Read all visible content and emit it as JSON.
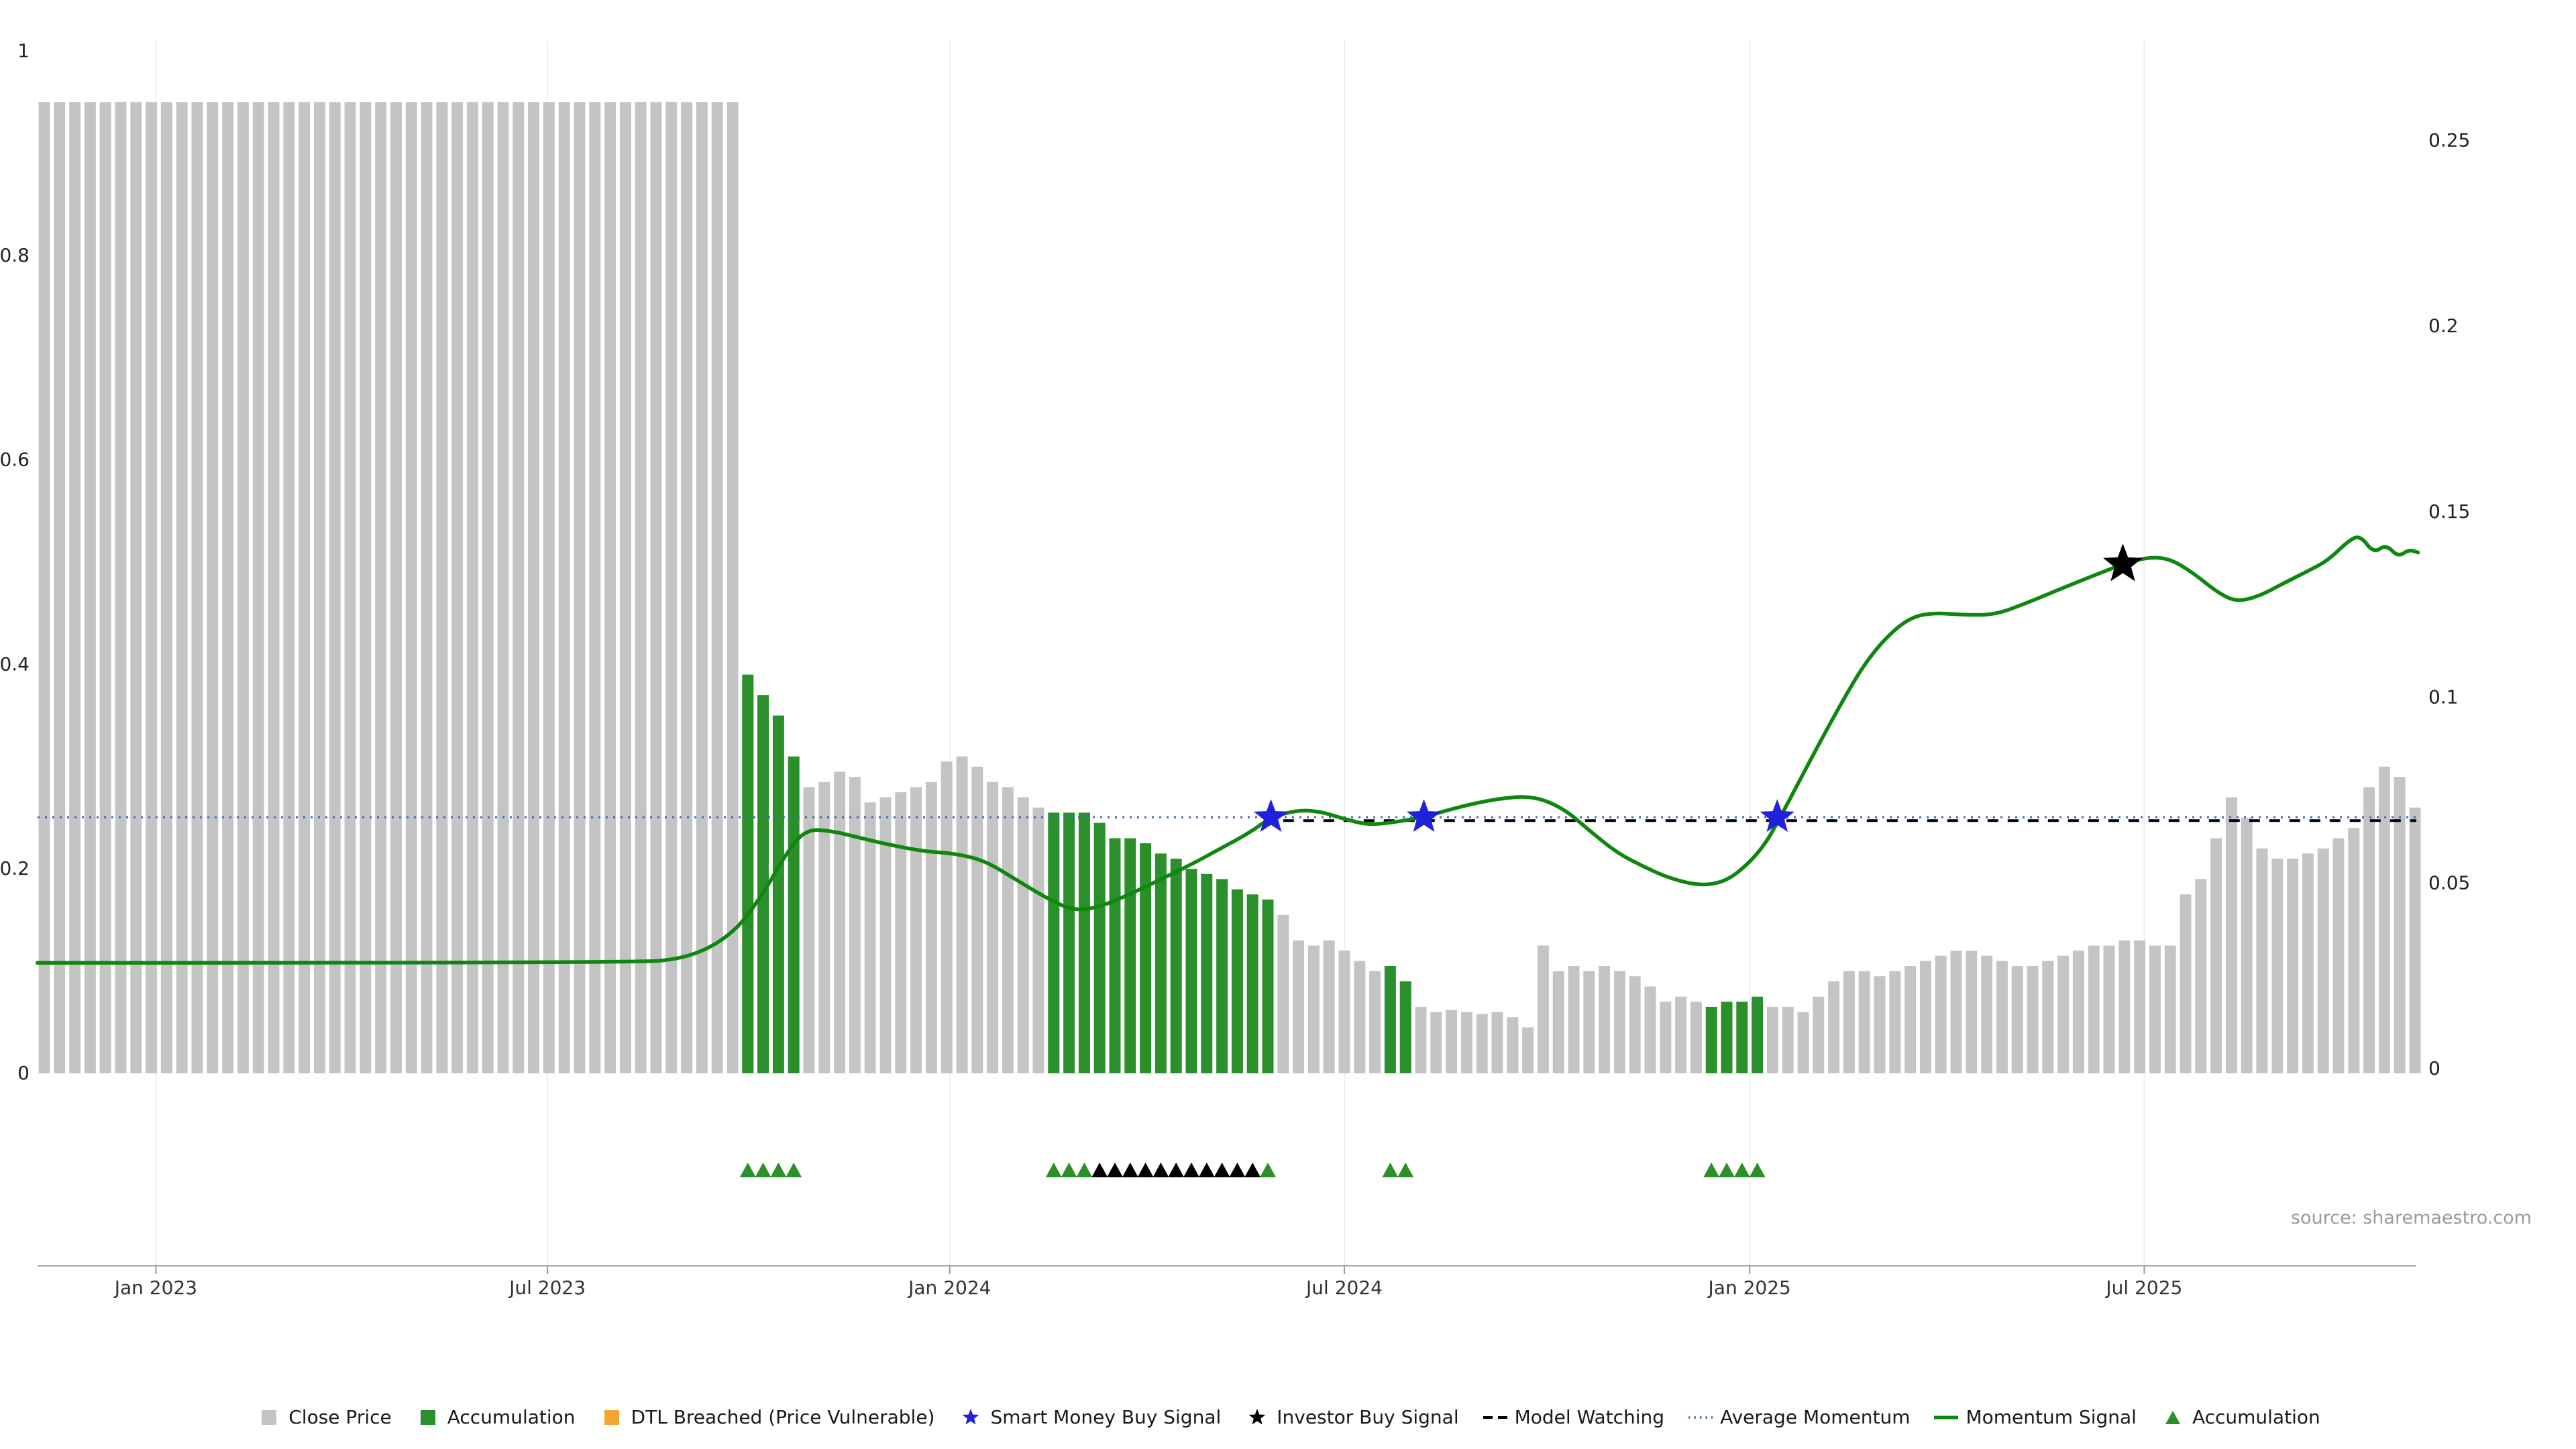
{
  "chart_data": {
    "type": "bar+line",
    "title": "",
    "source": "source: sharemaestro.com",
    "left_axis": {
      "range": [
        0,
        1.05
      ],
      "ticks": [
        {
          "v": 0,
          "label": "0"
        },
        {
          "v": 0.2,
          "label": "0.2"
        },
        {
          "v": 0.4,
          "label": "0.4"
        },
        {
          "v": 0.6,
          "label": "0.6"
        },
        {
          "v": 0.8,
          "label": "0.8"
        },
        {
          "v": 1,
          "label": "1"
        }
      ]
    },
    "right_axis": {
      "range": [
        0,
        0.27
      ],
      "ticks": [
        {
          "v": 0,
          "label": "0"
        },
        {
          "v": 0.05,
          "label": "0.05"
        },
        {
          "v": 0.1,
          "label": "0.1"
        },
        {
          "v": 0.15,
          "label": "0.15"
        },
        {
          "v": 0.2,
          "label": "0.2"
        },
        {
          "v": 0.25,
          "label": "0.25"
        }
      ]
    },
    "x_ticks": [
      {
        "label": "Jan 2023",
        "idx": 7.3
      },
      {
        "label": "Jul 2023",
        "idx": 32.9
      },
      {
        "label": "Jan 2024",
        "idx": 59.2
      },
      {
        "label": "Jul 2024",
        "idx": 85.0
      },
      {
        "label": "Jan 2025",
        "idx": 111.5
      },
      {
        "label": "Jul 2025",
        "idx": 137.3
      }
    ],
    "bars": {
      "series_name": "Close Price",
      "accumulation_name": "Accumulation",
      "values": [
        0.95,
        0.95,
        0.95,
        0.95,
        0.95,
        0.95,
        0.95,
        0.95,
        0.95,
        0.95,
        0.95,
        0.95,
        0.95,
        0.95,
        0.95,
        0.95,
        0.95,
        0.95,
        0.95,
        0.95,
        0.95,
        0.95,
        0.95,
        0.95,
        0.95,
        0.95,
        0.95,
        0.95,
        0.95,
        0.95,
        0.95,
        0.95,
        0.95,
        0.95,
        0.95,
        0.95,
        0.95,
        0.95,
        0.95,
        0.95,
        0.95,
        0.95,
        0.95,
        0.95,
        0.95,
        0.95,
        0.39,
        0.37,
        0.35,
        0.31,
        0.28,
        0.285,
        0.295,
        0.29,
        0.265,
        0.27,
        0.275,
        0.28,
        0.285,
        0.305,
        0.31,
        0.3,
        0.285,
        0.28,
        0.27,
        0.26,
        0.255,
        0.255,
        0.255,
        0.245,
        0.23,
        0.23,
        0.225,
        0.215,
        0.21,
        0.2,
        0.195,
        0.19,
        0.18,
        0.175,
        0.17,
        0.155,
        0.13,
        0.125,
        0.13,
        0.12,
        0.11,
        0.1,
        0.105,
        0.09,
        0.065,
        0.06,
        0.062,
        0.06,
        0.058,
        0.06,
        0.055,
        0.045,
        0.125,
        0.1,
        0.105,
        0.1,
        0.105,
        0.1,
        0.095,
        0.085,
        0.07,
        0.075,
        0.07,
        0.065,
        0.07,
        0.07,
        0.075,
        0.065,
        0.065,
        0.06,
        0.075,
        0.09,
        0.1,
        0.1,
        0.095,
        0.1,
        0.105,
        0.11,
        0.115,
        0.12,
        0.12,
        0.115,
        0.11,
        0.105,
        0.105,
        0.11,
        0.115,
        0.12,
        0.125,
        0.125,
        0.13,
        0.13,
        0.125,
        0.125,
        0.175,
        0.19,
        0.23,
        0.27,
        0.25,
        0.22,
        0.21,
        0.21,
        0.215,
        0.22,
        0.23,
        0.24,
        0.28,
        0.3,
        0.29,
        0.26
      ],
      "green_ranges": [
        [
          46,
          49
        ],
        [
          66,
          80
        ],
        [
          88,
          89
        ],
        [
          109,
          112
        ]
      ]
    },
    "momentum": [
      [
        -0.45,
        0.0285
      ],
      [
        38,
        0.0285
      ],
      [
        42,
        0.0295
      ],
      [
        45,
        0.036
      ],
      [
        47,
        0.047
      ],
      [
        48.5,
        0.058
      ],
      [
        49.8,
        0.0645
      ],
      [
        51.5,
        0.064
      ],
      [
        53,
        0.0625
      ],
      [
        55,
        0.0605
      ],
      [
        57.5,
        0.0585
      ],
      [
        59.5,
        0.058
      ],
      [
        61.5,
        0.056
      ],
      [
        63.5,
        0.051
      ],
      [
        65.5,
        0.046
      ],
      [
        67.3,
        0.0425
      ],
      [
        69,
        0.0435
      ],
      [
        71,
        0.047
      ],
      [
        73,
        0.051
      ],
      [
        75,
        0.055
      ],
      [
        77,
        0.0595
      ],
      [
        78.8,
        0.0635
      ],
      [
        80.2,
        0.0677
      ],
      [
        82,
        0.0697
      ],
      [
        83.5,
        0.0692
      ],
      [
        85,
        0.0672
      ],
      [
        86.5,
        0.0657
      ],
      [
        88,
        0.0662
      ],
      [
        90.2,
        0.0677
      ],
      [
        92.5,
        0.0705
      ],
      [
        95,
        0.0727
      ],
      [
        97.3,
        0.0735
      ],
      [
        99.3,
        0.0702
      ],
      [
        101,
        0.0642
      ],
      [
        102.8,
        0.0582
      ],
      [
        104.5,
        0.0545
      ],
      [
        106.3,
        0.0512
      ],
      [
        108.3,
        0.0492
      ],
      [
        110,
        0.0505
      ],
      [
        111.5,
        0.0555
      ],
      [
        112.6,
        0.061
      ],
      [
        113.5,
        0.0677
      ],
      [
        114.5,
        0.0755
      ],
      [
        116,
        0.0872
      ],
      [
        117.5,
        0.0985
      ],
      [
        119,
        0.109
      ],
      [
        120.5,
        0.1165
      ],
      [
        122,
        0.1215
      ],
      [
        123.5,
        0.1228
      ],
      [
        125.5,
        0.1222
      ],
      [
        127.5,
        0.1222
      ],
      [
        129.5,
        0.1252
      ],
      [
        132,
        0.1295
      ],
      [
        134.3,
        0.1333
      ],
      [
        136,
        0.136
      ],
      [
        137.6,
        0.1378
      ],
      [
        139,
        0.1373
      ],
      [
        140.5,
        0.1335
      ],
      [
        142,
        0.1285
      ],
      [
        143.3,
        0.1257
      ],
      [
        144.8,
        0.1272
      ],
      [
        146.3,
        0.1305
      ],
      [
        147.9,
        0.1338
      ],
      [
        149.3,
        0.1368
      ],
      [
        150.6,
        0.142
      ],
      [
        151.4,
        0.1437
      ],
      [
        152.3,
        0.1388
      ],
      [
        153.1,
        0.1412
      ],
      [
        153.9,
        0.1378
      ],
      [
        154.6,
        0.1398
      ],
      [
        155.2,
        0.139
      ]
    ],
    "average_momentum_value": 0.0677,
    "model_watching": {
      "value": 0.0668,
      "start_idx": 81
    },
    "smart_money_buy_signals": [
      {
        "idx": 80.2,
        "value": 0.0677
      },
      {
        "idx": 90.2,
        "value": 0.0677
      },
      {
        "idx": 113.3,
        "value": 0.0677
      }
    ],
    "investor_buy_signals": [
      {
        "idx": 135.9,
        "value": 0.1358
      }
    ],
    "accumulation_markers": [
      46,
      47,
      48,
      49,
      66,
      67,
      68,
      80,
      88,
      89,
      109,
      110,
      111,
      112
    ],
    "black_markers": [
      69,
      70,
      71,
      72,
      73,
      74,
      75,
      76,
      77,
      78,
      79
    ],
    "colors": {
      "close_price": "#c4c4c4",
      "accumulation": "#2b8f2b",
      "momentum": "#0f870f",
      "average_momentum": "#3f6cb5",
      "model_watching": "#000000",
      "smart_money": "#2121dd",
      "investor": "#000000",
      "dtl_breached": "#f2a72e"
    }
  },
  "legend": {
    "items": [
      {
        "key": "close-price",
        "label": "Close Price",
        "marker": "square",
        "color": "#c4c4c4"
      },
      {
        "key": "accumulation",
        "label": "Accumulation",
        "marker": "square",
        "color": "#2b8f2b"
      },
      {
        "key": "dtl-breached",
        "label": "DTL Breached (Price Vulnerable)",
        "marker": "square",
        "color": "#f2a72e"
      },
      {
        "key": "smart-money-buy-signal",
        "label": "Smart Money Buy Signal",
        "marker": "star",
        "color": "#2121dd"
      },
      {
        "key": "investor-buy-signal",
        "label": "Investor Buy Signal",
        "marker": "star",
        "color": "#000000"
      },
      {
        "key": "model-watching",
        "label": "Model Watching",
        "marker": "dash",
        "color": "#000000"
      },
      {
        "key": "average-momentum",
        "label": "Average Momentum",
        "marker": "dots",
        "color": "#3f6cb5"
      },
      {
        "key": "momentum-signal",
        "label": "Momentum Signal",
        "marker": "line",
        "color": "#0f870f"
      },
      {
        "key": "accumulation-marker",
        "label": "Accumulation",
        "marker": "triangle",
        "color": "#2b8f2b"
      }
    ]
  }
}
